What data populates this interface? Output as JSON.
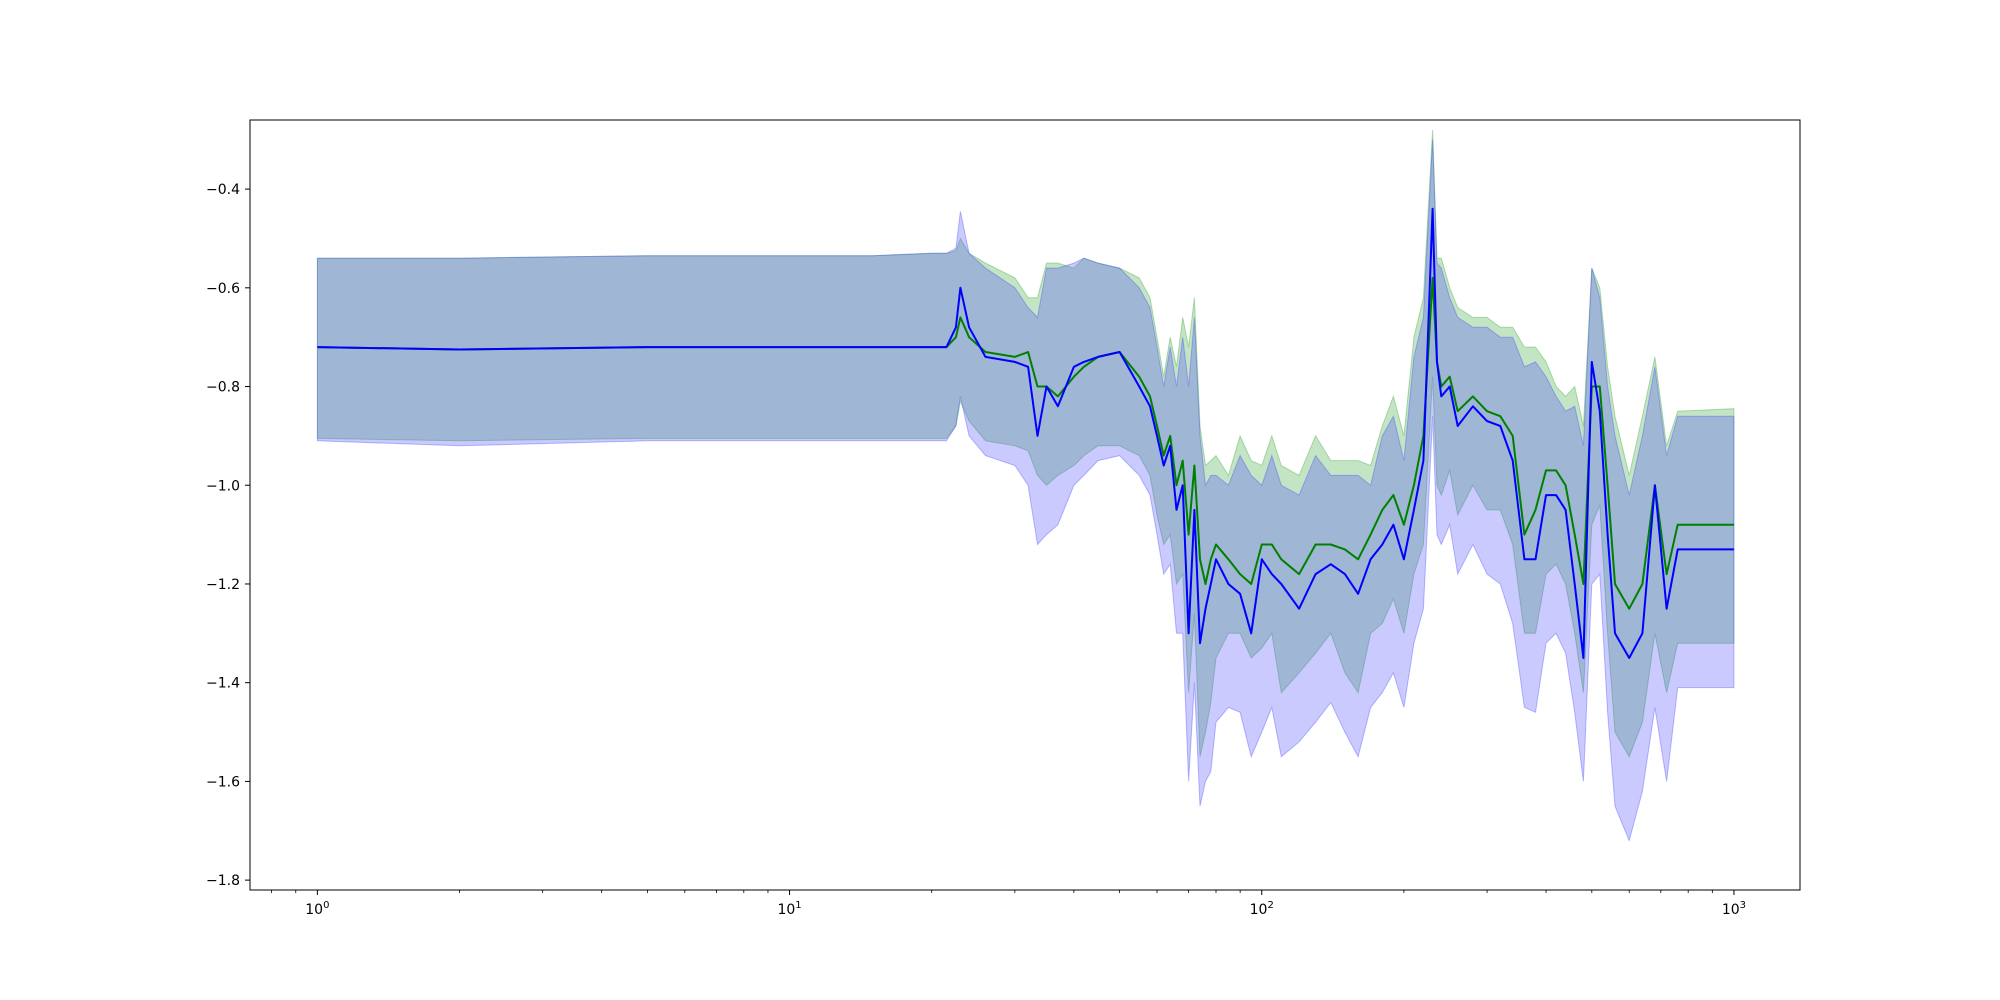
{
  "chart_data": {
    "type": "line",
    "title": "",
    "xlabel": "",
    "ylabel": "",
    "xscale": "log",
    "xlim": [
      0.72,
      1380
    ],
    "ylim": [
      -1.82,
      -0.26
    ],
    "grid": false,
    "legend": "none",
    "x_ticks": [
      {
        "value": 1,
        "base": "10",
        "exp": "0"
      },
      {
        "value": 10,
        "base": "10",
        "exp": "1"
      },
      {
        "value": 100,
        "base": "10",
        "exp": "2"
      },
      {
        "value": 1000,
        "base": "10",
        "exp": "3"
      }
    ],
    "y_ticks": [
      {
        "value": -0.4,
        "label": "−0.4"
      },
      {
        "value": -0.6,
        "label": "−0.6"
      },
      {
        "value": -0.8,
        "label": "−0.8"
      },
      {
        "value": -1.0,
        "label": "−1.0"
      },
      {
        "value": -1.2,
        "label": "−1.2"
      },
      {
        "value": -1.4,
        "label": "−1.4"
      },
      {
        "value": -1.6,
        "label": "−1.6"
      },
      {
        "value": -1.8,
        "label": "−1.8"
      }
    ],
    "series": [
      {
        "color": "#008000",
        "band_color": "#2ca02c",
        "x": [
          1,
          2,
          5,
          10,
          15,
          20,
          21.5,
          22.5,
          23,
          24,
          26,
          30,
          32,
          33.5,
          35,
          37,
          40,
          42,
          45,
          50,
          55,
          58,
          60,
          62,
          64,
          66,
          68,
          70,
          72,
          74,
          76,
          78,
          80,
          85,
          90,
          95,
          100,
          105,
          110,
          120,
          130,
          140,
          150,
          160,
          170,
          180,
          190,
          200,
          210,
          220,
          230,
          235,
          240,
          250,
          260,
          280,
          300,
          320,
          340,
          360,
          380,
          400,
          420,
          440,
          460,
          480,
          500,
          520,
          540,
          560,
          600,
          640,
          680,
          720,
          760,
          1000
        ],
        "y": [
          -0.72,
          -0.725,
          -0.72,
          -0.72,
          -0.72,
          -0.72,
          -0.72,
          -0.7,
          -0.66,
          -0.7,
          -0.73,
          -0.74,
          -0.73,
          -0.8,
          -0.8,
          -0.82,
          -0.78,
          -0.76,
          -0.74,
          -0.73,
          -0.78,
          -0.82,
          -0.88,
          -0.94,
          -0.9,
          -1.0,
          -0.95,
          -1.1,
          -0.96,
          -1.15,
          -1.2,
          -1.15,
          -1.12,
          -1.15,
          -1.18,
          -1.2,
          -1.12,
          -1.12,
          -1.15,
          -1.18,
          -1.12,
          -1.12,
          -1.13,
          -1.15,
          -1.1,
          -1.05,
          -1.02,
          -1.08,
          -1.0,
          -0.9,
          -0.58,
          -0.75,
          -0.8,
          -0.78,
          -0.85,
          -0.82,
          -0.85,
          -0.86,
          -0.9,
          -1.1,
          -1.05,
          -0.97,
          -0.97,
          -1.0,
          -1.1,
          -1.2,
          -0.8,
          -0.8,
          -1.0,
          -1.2,
          -1.25,
          -1.2,
          -1.0,
          -1.18,
          -1.08,
          -1.08
        ],
        "upper": [
          -0.54,
          -0.54,
          -0.535,
          -0.535,
          -0.535,
          -0.53,
          -0.53,
          -0.525,
          -0.5,
          -0.53,
          -0.55,
          -0.58,
          -0.62,
          -0.62,
          -0.55,
          -0.55,
          -0.56,
          -0.54,
          -0.55,
          -0.56,
          -0.58,
          -0.62,
          -0.7,
          -0.78,
          -0.7,
          -0.76,
          -0.66,
          -0.72,
          -0.62,
          -0.88,
          -0.96,
          -0.95,
          -0.94,
          -0.98,
          -0.9,
          -0.95,
          -0.96,
          -0.9,
          -0.96,
          -0.98,
          -0.9,
          -0.95,
          -0.95,
          -0.95,
          -0.96,
          -0.88,
          -0.82,
          -0.9,
          -0.7,
          -0.62,
          -0.28,
          -0.54,
          -0.54,
          -0.6,
          -0.64,
          -0.66,
          -0.66,
          -0.68,
          -0.68,
          -0.72,
          -0.72,
          -0.75,
          -0.8,
          -0.82,
          -0.8,
          -0.88,
          -0.56,
          -0.6,
          -0.76,
          -0.86,
          -0.98,
          -0.86,
          -0.74,
          -0.92,
          -0.85,
          -0.845
        ],
        "lower": [
          -0.905,
          -0.91,
          -0.905,
          -0.905,
          -0.905,
          -0.905,
          -0.905,
          -0.88,
          -0.83,
          -0.87,
          -0.91,
          -0.92,
          -0.93,
          -0.98,
          -1.0,
          -0.98,
          -0.96,
          -0.94,
          -0.92,
          -0.92,
          -0.94,
          -0.98,
          -1.06,
          -1.12,
          -1.1,
          -1.2,
          -1.18,
          -1.42,
          -1.26,
          -1.55,
          -1.5,
          -1.44,
          -1.35,
          -1.3,
          -1.3,
          -1.35,
          -1.33,
          -1.3,
          -1.42,
          -1.38,
          -1.34,
          -1.3,
          -1.38,
          -1.42,
          -1.3,
          -1.28,
          -1.23,
          -1.3,
          -1.18,
          -1.12,
          -0.78,
          -1.0,
          -1.02,
          -0.97,
          -1.06,
          -1.0,
          -1.05,
          -1.05,
          -1.12,
          -1.3,
          -1.3,
          -1.18,
          -1.16,
          -1.2,
          -1.3,
          -1.42,
          -1.08,
          -1.04,
          -1.3,
          -1.5,
          -1.55,
          -1.48,
          -1.3,
          -1.42,
          -1.32,
          -1.32
        ]
      },
      {
        "color": "#0000ff",
        "band_color": "#4040ff",
        "x": [
          1,
          2,
          5,
          10,
          15,
          20,
          21.5,
          22.5,
          23,
          24,
          26,
          30,
          32,
          33.5,
          35,
          37,
          40,
          42,
          45,
          50,
          55,
          58,
          60,
          62,
          64,
          66,
          68,
          70,
          72,
          74,
          76,
          78,
          80,
          85,
          90,
          95,
          100,
          105,
          110,
          120,
          130,
          140,
          150,
          160,
          170,
          180,
          190,
          200,
          210,
          220,
          230,
          235,
          240,
          250,
          260,
          280,
          300,
          320,
          340,
          360,
          380,
          400,
          420,
          440,
          460,
          480,
          500,
          520,
          540,
          560,
          600,
          640,
          680,
          720,
          760,
          1000
        ],
        "y": [
          -0.72,
          -0.725,
          -0.72,
          -0.72,
          -0.72,
          -0.72,
          -0.72,
          -0.68,
          -0.6,
          -0.68,
          -0.74,
          -0.75,
          -0.76,
          -0.9,
          -0.8,
          -0.84,
          -0.76,
          -0.75,
          -0.74,
          -0.73,
          -0.8,
          -0.84,
          -0.9,
          -0.96,
          -0.92,
          -1.05,
          -1.0,
          -1.3,
          -1.05,
          -1.32,
          -1.25,
          -1.2,
          -1.15,
          -1.2,
          -1.22,
          -1.3,
          -1.15,
          -1.18,
          -1.2,
          -1.25,
          -1.18,
          -1.16,
          -1.18,
          -1.22,
          -1.15,
          -1.12,
          -1.08,
          -1.15,
          -1.05,
          -0.95,
          -0.44,
          -0.75,
          -0.82,
          -0.8,
          -0.88,
          -0.84,
          -0.87,
          -0.88,
          -0.95,
          -1.15,
          -1.15,
          -1.02,
          -1.02,
          -1.05,
          -1.2,
          -1.35,
          -0.75,
          -0.85,
          -1.1,
          -1.3,
          -1.35,
          -1.3,
          -1.0,
          -1.25,
          -1.13,
          -1.13
        ],
        "upper": [
          -0.54,
          -0.54,
          -0.535,
          -0.535,
          -0.535,
          -0.53,
          -0.53,
          -0.52,
          -0.445,
          -0.53,
          -0.56,
          -0.6,
          -0.64,
          -0.66,
          -0.56,
          -0.56,
          -0.55,
          -0.54,
          -0.55,
          -0.56,
          -0.6,
          -0.64,
          -0.72,
          -0.8,
          -0.72,
          -0.8,
          -0.7,
          -0.8,
          -0.66,
          -0.9,
          -1.0,
          -0.98,
          -0.98,
          -1.0,
          -0.94,
          -0.98,
          -1.0,
          -0.94,
          -1.0,
          -1.02,
          -0.94,
          -0.98,
          -0.98,
          -0.98,
          -1.0,
          -0.9,
          -0.86,
          -0.95,
          -0.74,
          -0.66,
          -0.3,
          -0.55,
          -0.56,
          -0.62,
          -0.66,
          -0.68,
          -0.68,
          -0.7,
          -0.7,
          -0.76,
          -0.75,
          -0.78,
          -0.82,
          -0.85,
          -0.84,
          -0.92,
          -0.56,
          -0.62,
          -0.8,
          -0.9,
          -1.02,
          -0.9,
          -0.76,
          -0.94,
          -0.86,
          -0.86
        ],
        "lower": [
          -0.91,
          -0.92,
          -0.91,
          -0.91,
          -0.91,
          -0.91,
          -0.91,
          -0.88,
          -0.82,
          -0.9,
          -0.94,
          -0.96,
          -1.0,
          -1.12,
          -1.1,
          -1.08,
          -1.0,
          -0.98,
          -0.95,
          -0.94,
          -0.98,
          -1.02,
          -1.1,
          -1.18,
          -1.16,
          -1.3,
          -1.3,
          -1.6,
          -1.4,
          -1.65,
          -1.6,
          -1.58,
          -1.48,
          -1.45,
          -1.46,
          -1.55,
          -1.5,
          -1.45,
          -1.55,
          -1.52,
          -1.48,
          -1.44,
          -1.5,
          -1.55,
          -1.45,
          -1.42,
          -1.38,
          -1.45,
          -1.32,
          -1.25,
          -0.86,
          -1.1,
          -1.12,
          -1.08,
          -1.18,
          -1.12,
          -1.18,
          -1.2,
          -1.28,
          -1.45,
          -1.46,
          -1.32,
          -1.3,
          -1.34,
          -1.46,
          -1.6,
          -1.2,
          -1.18,
          -1.46,
          -1.65,
          -1.72,
          -1.62,
          -1.45,
          -1.6,
          -1.41,
          -1.41
        ]
      }
    ]
  }
}
